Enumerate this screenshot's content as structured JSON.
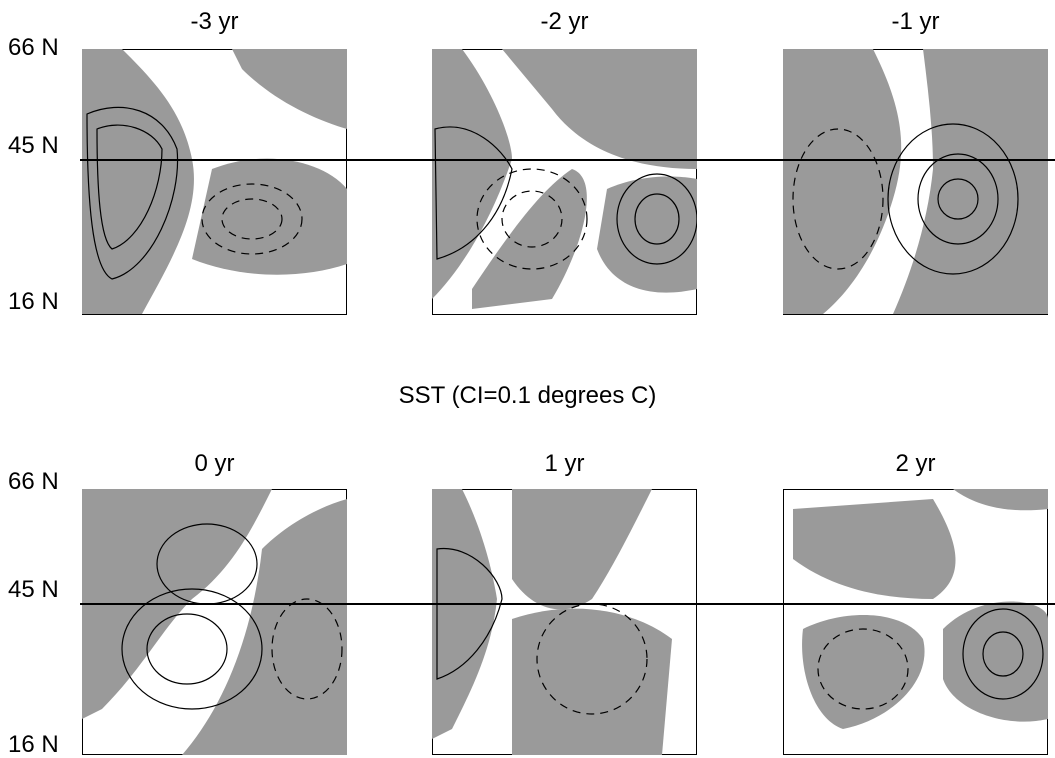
{
  "chart_data": {
    "type": "contour",
    "title": "SST (CI=0.1 degrees C)",
    "contour_interval": 0.1,
    "contour_unit": "degrees C",
    "lat_labels": [
      "66 N",
      "45 N",
      "16 N"
    ],
    "reference_latitude": "45 N",
    "panels": [
      {
        "label": "-3 yr",
        "lag": -3
      },
      {
        "label": "-2 yr",
        "lag": -2
      },
      {
        "label": "-1 yr",
        "lag": -1
      },
      {
        "label": "0 yr",
        "lag": 0
      },
      {
        "label": "1 yr",
        "lag": 1
      },
      {
        "label": "2 yr",
        "lag": 2
      }
    ],
    "shading": "grey = negative region, white = positive region, dots = not significant",
    "contour_style": {
      "positive": "solid",
      "negative": "dashed"
    },
    "colors": {
      "negative_fill": "#9a9a9a",
      "positive_fill": "#ffffff",
      "line": "#000000"
    }
  }
}
